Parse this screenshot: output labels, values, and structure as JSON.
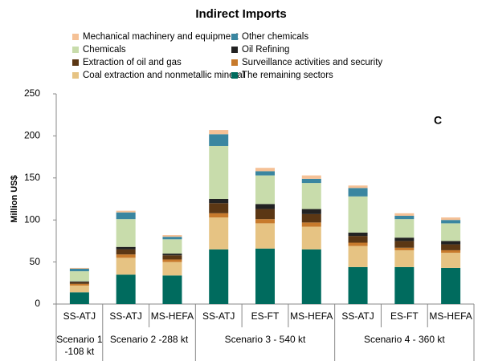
{
  "chart_data": {
    "type": "stacked_bar",
    "title": "Indirect Imports",
    "y_label": "Million US$",
    "annotation": "C",
    "groups": [
      {
        "name": "Scenario 1 -108 kt",
        "categories": [
          "SS-ATJ"
        ]
      },
      {
        "name": "Scenario 2 -288 kt",
        "categories": [
          "SS-ATJ",
          "MS-HEFA"
        ]
      },
      {
        "name": "Scenario 3 - 540 kt",
        "categories": [
          "SS-ATJ",
          "ES-FT",
          "MS-HEFA"
        ]
      },
      {
        "name": "Scenario 4 - 360 kt",
        "categories": [
          "SS-ATJ",
          "ES-FT",
          "MS-HEFA"
        ]
      }
    ],
    "series": [
      {
        "name": "The remaining sectors",
        "color": "#006b5e",
        "values": [
          14,
          35,
          34,
          65,
          66,
          65,
          44,
          44,
          43
        ]
      },
      {
        "name": "Coal extraction and nonmetallic mineral",
        "color": "#e6c383",
        "values": [
          8,
          20,
          16,
          38,
          30,
          27,
          25,
          20,
          18
        ]
      },
      {
        "name": "Surveillance activities and security",
        "color": "#c77a2c",
        "values": [
          2,
          4,
          3,
          5,
          5,
          5,
          4,
          3,
          3
        ]
      },
      {
        "name": "Extraction of oil and gas",
        "color": "#5b3714",
        "values": [
          2,
          6,
          5,
          12,
          12,
          10,
          8,
          8,
          7
        ]
      },
      {
        "name": "Oil Refining",
        "color": "#222222",
        "values": [
          1,
          3,
          2,
          5,
          6,
          6,
          4,
          4,
          4
        ]
      },
      {
        "name": "Chemicals",
        "color": "#c8dcab",
        "values": [
          12,
          33,
          17,
          63,
          34,
          31,
          43,
          22,
          21
        ]
      },
      {
        "name": "Other chemicals",
        "color": "#3a86a0",
        "values": [
          3,
          8,
          3,
          14,
          5,
          5,
          10,
          4,
          4
        ]
      },
      {
        "name": "Mechanical machinery and equipment",
        "color": "#f5c196",
        "values": [
          1,
          2,
          2,
          5,
          4,
          4,
          3,
          3,
          3
        ]
      }
    ],
    "ylim": [
      0,
      250
    ],
    "yticks": [
      0,
      50,
      100,
      150,
      200,
      250
    ]
  }
}
